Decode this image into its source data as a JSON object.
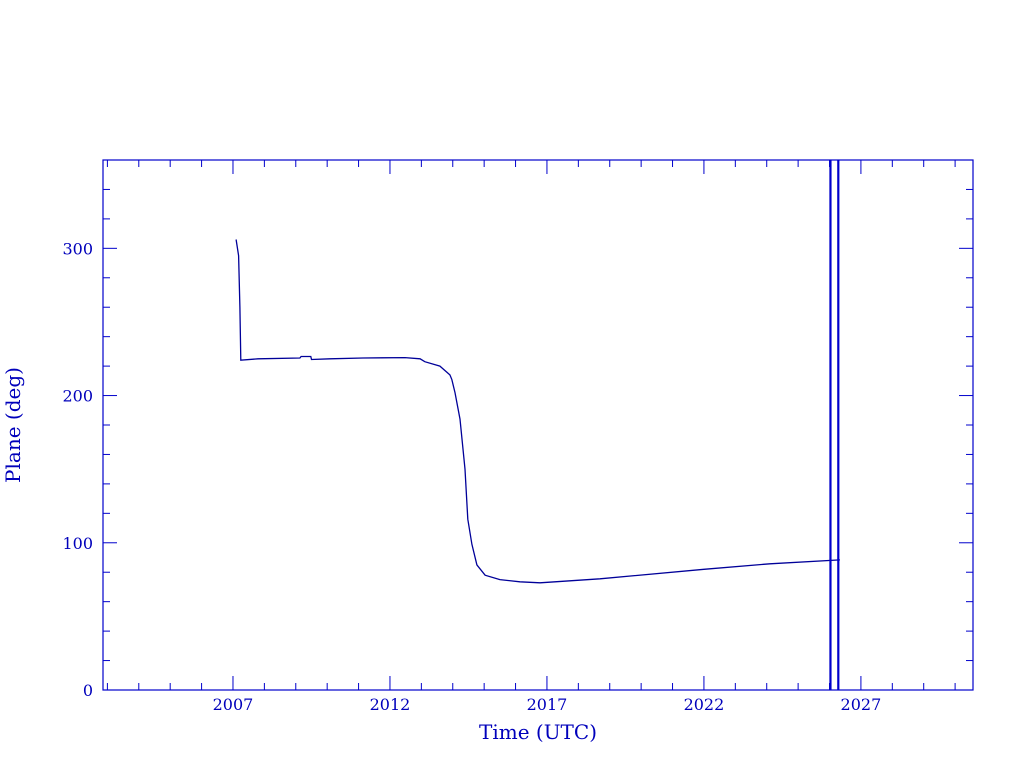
{
  "chart_data": {
    "type": "line",
    "title": "",
    "xlabel": "Time (UTC)",
    "ylabel": "Plane (deg)",
    "xlim": [
      2002.86,
      2030.57
    ],
    "ylim": [
      0,
      360
    ],
    "x_ticks": [
      2007,
      2012,
      2017,
      2022,
      2027
    ],
    "x_tick_labels": [
      "2007",
      "2012",
      "2017",
      "2022",
      "2027"
    ],
    "y_ticks": [
      0,
      100,
      200,
      300
    ],
    "y_tick_labels": [
      "0",
      "100",
      "200",
      "300"
    ],
    "x_minor_step": 1,
    "y_minor_step": 20,
    "grid": false,
    "series": [
      {
        "x": [
          2007.1,
          2007.18,
          2007.22,
          2007.25,
          2007.8,
          2009.13,
          2009.17,
          2009.48,
          2009.5,
          2010.09,
          2011.14,
          2012.48,
          2012.96,
          2013.11,
          2013.59,
          2013.91,
          2013.97,
          2014.07,
          2014.23,
          2014.39,
          2014.48,
          2014.61,
          2014.77,
          2015.03,
          2015.5,
          2016.14,
          2016.78,
          2018.69,
          2022.0,
          2024.1,
          2026.33
        ],
        "y": [
          306,
          295,
          260,
          224,
          225,
          225.5,
          226.5,
          226.5,
          224.5,
          225,
          225.5,
          225.8,
          225,
          223,
          220,
          214,
          211,
          202,
          184,
          150,
          116,
          99,
          85,
          78,
          75,
          73.5,
          72.8,
          75.5,
          82,
          85.7,
          88.4
        ]
      }
    ],
    "vertical_lines": [
      2026.03,
      2026.28
    ],
    "colors": {
      "axis": "#0000cc",
      "line": "#000099",
      "text": "#0000bb"
    }
  }
}
